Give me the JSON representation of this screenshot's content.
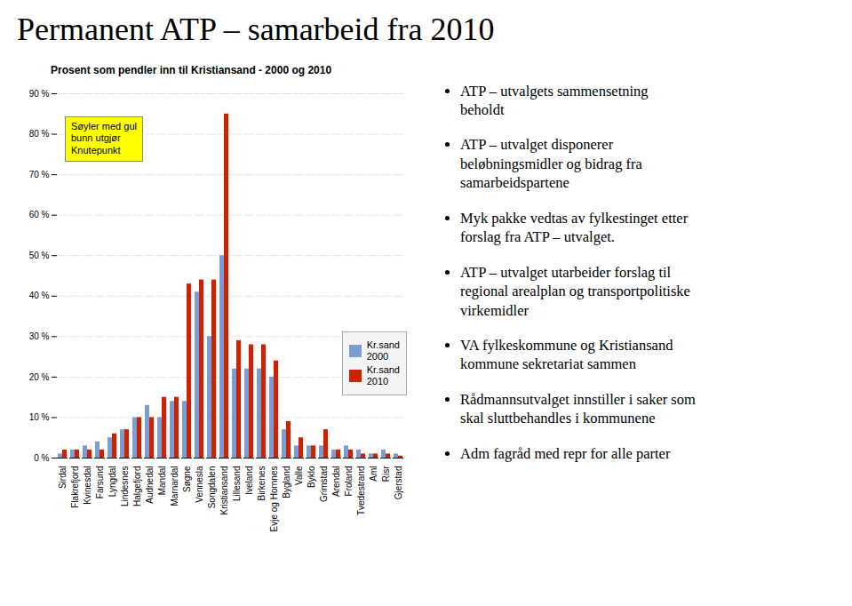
{
  "title": "Permanent ATP – samarbeid fra 2010",
  "chart_data": {
    "type": "bar",
    "title": "Prosent som pendler inn til Kristiansand - 2000 og 2010",
    "categories": [
      "Sirdal",
      "Flakrefjord",
      "Kvinesdal",
      "Farsund",
      "Lyngdal",
      "Lindesnes",
      "Halgefjord",
      "Audnedal",
      "Mandal",
      "Marnardal",
      "Søgne",
      "Vennesla",
      "Songdalen",
      "Kristiansand",
      "Lillesand",
      "Iveland",
      "Birkenes",
      "Evje og Hornnes",
      "Bygland",
      "Valle",
      "Byklo",
      "Grimstad",
      "Arendal",
      "Froland",
      "Tvedestrand",
      "Aml",
      "Risr",
      "Gjerstad"
    ],
    "series": [
      {
        "name": "Kr.sand\n2000",
        "color": "#7b9cd4",
        "values": [
          1,
          2,
          3,
          4,
          5,
          7,
          10,
          13,
          10,
          14,
          14,
          41,
          30,
          50,
          22,
          22,
          22,
          20,
          7,
          3,
          3,
          3,
          2,
          3,
          2,
          1,
          2,
          1
        ]
      },
      {
        "name": "Kr.sand\n2010",
        "color": "#cc2200",
        "values": [
          2,
          2,
          2,
          2,
          6,
          7,
          10,
          10,
          15,
          15,
          43,
          44,
          44,
          85,
          29,
          28,
          28,
          24,
          9,
          5,
          3,
          7,
          2,
          2,
          1,
          1,
          1,
          0.5
        ]
      }
    ],
    "ylim": [
      0,
      90
    ],
    "yticks": [
      {
        "value": 0,
        "label": "0 %"
      },
      {
        "value": 10,
        "label": "10 %"
      },
      {
        "value": 20,
        "label": "20 %"
      },
      {
        "value": 30,
        "label": "30 %"
      },
      {
        "value": 40,
        "label": "40 %"
      },
      {
        "value": 50,
        "label": "50 %"
      },
      {
        "value": 60,
        "label": "60 %"
      },
      {
        "value": 70,
        "label": "70 %"
      },
      {
        "value": 80,
        "label": "80 %"
      },
      {
        "value": 90,
        "label": "90 %"
      }
    ],
    "grid": true,
    "legend": "lower right",
    "annotations": [
      {
        "text": "Søyler med gul\nbunn utgjør\nKnutepunkt",
        "color": "#ffff00"
      }
    ]
  },
  "bullet_points": [
    "ATP – utvalgets sammensetning\nbeholdt",
    "ATP – utvalget disponerer\nbeløbningsmidler og bidrag fra\nsamarbeidspartene",
    "Myk pakke vedtas av fylkestinget etter\nforslag fra ATP – utvalget.",
    "ATP – utvalget utarbeider forslag til\nregional arealplan og transportpolitiske\nvirkemidler",
    "VA fylkeskommune og Kristiansand\nkommune sekretariat sammen",
    "Rådmannsutvalget innstiller i saker som\nskal sluttbehandles i kommunene",
    "Adm fagråd med repr for alle parter"
  ]
}
